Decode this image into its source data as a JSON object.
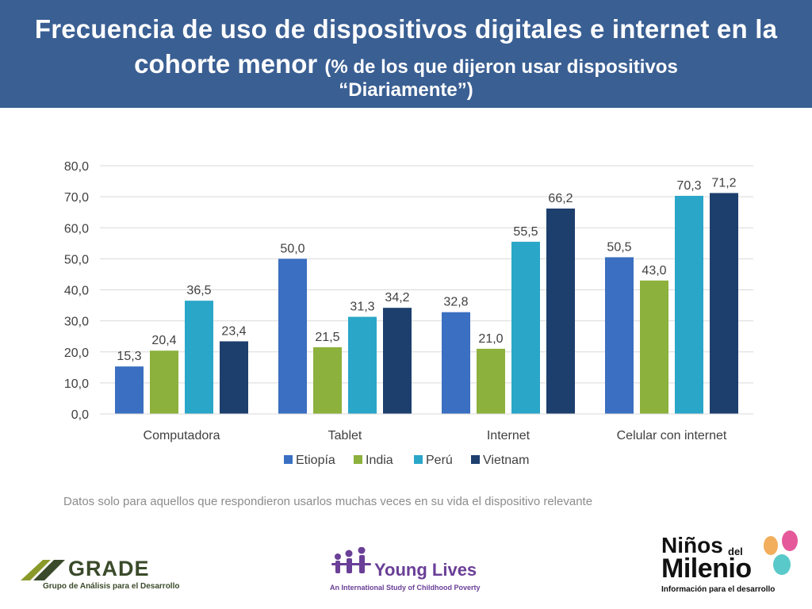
{
  "header": {
    "title_line1": "Frecuencia de uso de dispositivos digitales e internet en la",
    "title_line2_main": "cohorte menor",
    "title_line2_sub": "(% de los que dijeron usar dispositivos",
    "title_line3": "“Diariamente”)",
    "background": "#3a5f93"
  },
  "chart_data": {
    "type": "bar",
    "title": "Frecuencia de uso de dispositivos digitales e internet en la cohorte menor (% de los que dijeron usar dispositivos “Diariamente”)",
    "categories": [
      "Computadora",
      "Tablet",
      "Internet",
      "Celular con internet"
    ],
    "series": [
      {
        "name": "Etiopía",
        "values": [
          15.3,
          50.0,
          32.8,
          50.5
        ],
        "color": "#3a6fc1"
      },
      {
        "name": "India",
        "values": [
          20.4,
          21.5,
          21.0,
          43.0
        ],
        "color": "#8cb13c"
      },
      {
        "name": "Perú",
        "values": [
          36.5,
          31.3,
          55.5,
          70.3
        ],
        "color": "#2aa6c8"
      },
      {
        "name": "Vietnam",
        "values": [
          23.4,
          34.2,
          66.2,
          71.2
        ],
        "color": "#1d3f6e"
      }
    ],
    "ylim": [
      0,
      80
    ],
    "yticks": [
      0,
      10,
      20,
      30,
      40,
      50,
      60,
      70,
      80
    ],
    "tick_format": "decimal-comma-1",
    "xlabel": "",
    "ylabel": "",
    "grid": true,
    "legend": "bottom"
  },
  "note": "Datos solo para aquellos que respondieron usarlos muchas veces en su vida el dispositivo relevante",
  "logos": {
    "grade": {
      "name": "GRADE",
      "subtitle": "Grupo de Análisis para el Desarrollo"
    },
    "young_lives": {
      "name": "Young Lives",
      "subtitle": "An International Study of Childhood Poverty"
    },
    "ninos": {
      "line1": "Niños",
      "del": "del",
      "line2": "Milenio",
      "subtitle": "Información para el desarrollo"
    }
  }
}
